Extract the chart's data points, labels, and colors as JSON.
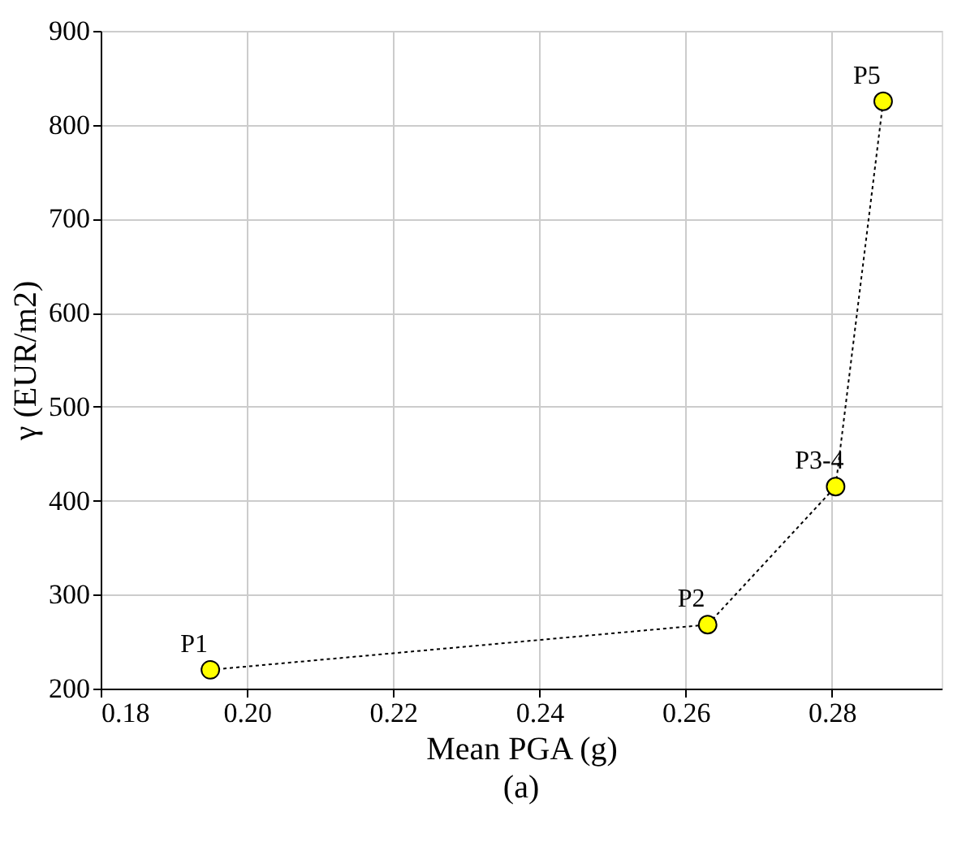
{
  "chart_data": {
    "type": "line",
    "xlabel": "Mean PGA (g)",
    "ylabel": "γ (EUR/m2)",
    "x": [
      0.195,
      0.263,
      0.2805,
      0.287
    ],
    "series": [
      {
        "color": "#ffff00",
        "values": [
          220,
          268,
          415,
          825
        ],
        "line_style": "dotted",
        "marker": "circle"
      }
    ],
    "xlim": [
      0.18,
      0.295
    ],
    "xticks": [
      {
        "value": 0.18,
        "label": "0.18"
      },
      {
        "value": 0.2,
        "label": "0.20"
      },
      {
        "value": 0.22,
        "label": "0.22"
      },
      {
        "value": 0.24,
        "label": "0.24"
      },
      {
        "value": 0.26,
        "label": "0.26"
      },
      {
        "value": 0.28,
        "label": "0.28"
      }
    ],
    "ylim": [
      200,
      900
    ],
    "yticks": [
      200,
      300,
      400,
      500,
      600,
      700,
      800,
      900
    ],
    "grid": true,
    "annotations": [
      {
        "text": "P1",
        "x": 0.195,
        "y": 220
      },
      {
        "text": "P2",
        "x": 0.263,
        "y": 268
      },
      {
        "text": "P3-4",
        "x": 0.2805,
        "y": 415
      },
      {
        "text": "P5",
        "x": 0.287,
        "y": 825
      },
      "(a)"
    ]
  }
}
